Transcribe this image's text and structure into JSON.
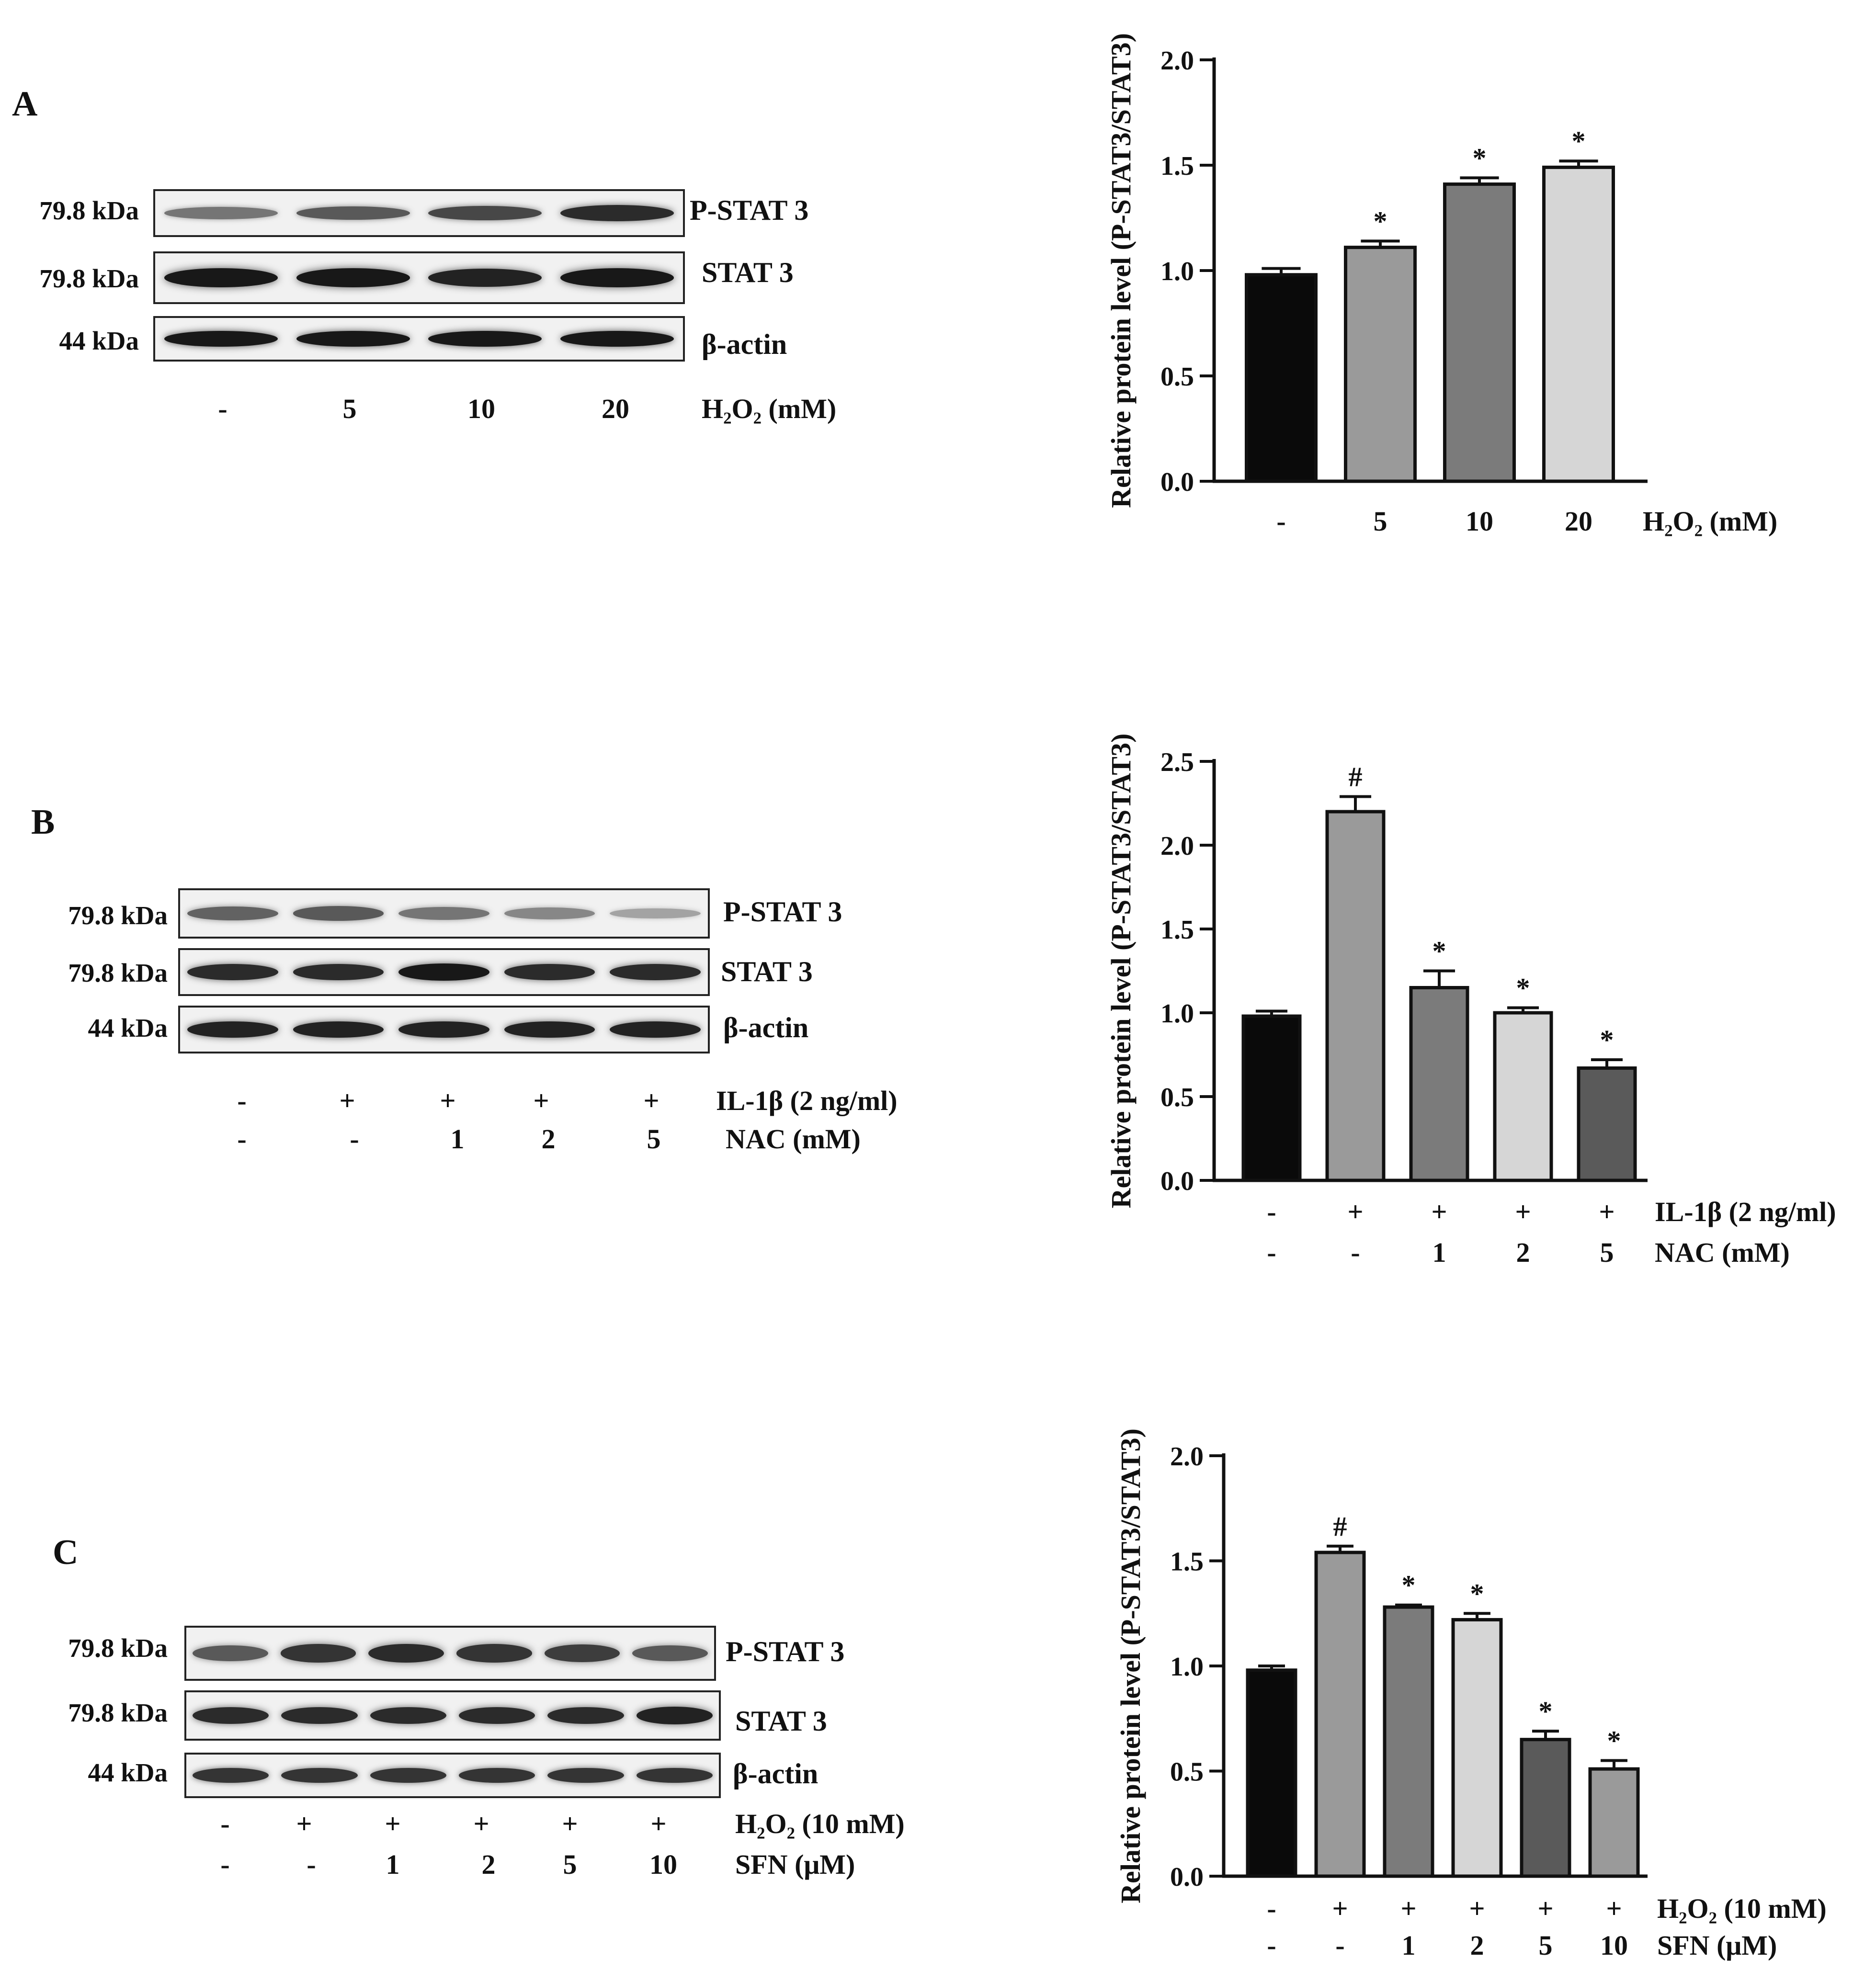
{
  "figure": {
    "panels": [
      {
        "letter": "A",
        "markers": [
          "79.8 kDa",
          "79.8 kDa",
          "44 kDa"
        ],
        "blots": [
          {
            "label": "P-STAT 3",
            "intensity": [
              0.45,
              0.6,
              0.7,
              0.85
            ]
          },
          {
            "label": "STAT 3",
            "intensity": [
              0.95,
              0.95,
              0.9,
              0.95
            ]
          },
          {
            "label": "β-actin",
            "intensity": [
              0.95,
              0.95,
              0.95,
              0.95
            ]
          }
        ],
        "conditions": [
          {
            "label": "H₂O₂ (mM)",
            "values": [
              "-",
              "5",
              "10",
              "20"
            ]
          }
        ]
      },
      {
        "letter": "B",
        "markers": [
          "79.8 kDa",
          "79.8 kDa",
          "44 kDa"
        ],
        "blots": [
          {
            "label": "P-STAT 3",
            "intensity": [
              0.55,
              0.6,
              0.45,
              0.35,
              0.2
            ]
          },
          {
            "label": "STAT 3",
            "intensity": [
              0.85,
              0.85,
              0.95,
              0.85,
              0.85
            ]
          },
          {
            "label": "β-actin",
            "intensity": [
              0.9,
              0.9,
              0.9,
              0.9,
              0.9
            ]
          }
        ],
        "conditions": [
          {
            "label": "IL-1β  (2 ng/ml)",
            "values": [
              "-",
              "+",
              "+",
              "+",
              "+"
            ]
          },
          {
            "label": "NAC  (mM)",
            "values": [
              "-",
              "-",
              "1",
              "2",
              "5"
            ]
          }
        ]
      },
      {
        "letter": "C",
        "markers": [
          "79.8 kDa",
          "79.8 kDa",
          "44 kDa"
        ],
        "blots": [
          {
            "label": "P-STAT 3",
            "intensity": [
              0.6,
              0.8,
              0.85,
              0.8,
              0.75,
              0.6
            ]
          },
          {
            "label": "STAT 3",
            "intensity": [
              0.85,
              0.85,
              0.85,
              0.85,
              0.85,
              0.9
            ]
          },
          {
            "label": "β-actin",
            "intensity": [
              0.8,
              0.8,
              0.8,
              0.8,
              0.8,
              0.8
            ]
          }
        ],
        "conditions": [
          {
            "label": "H₂O₂ (10 mM)",
            "values": [
              "-",
              "+",
              "+",
              "+",
              "+",
              "+"
            ]
          },
          {
            "label": "SFN  (μM)",
            "values": [
              "-",
              "-",
              "1",
              "2",
              "5",
              "10"
            ]
          }
        ]
      }
    ]
  },
  "chart_data": [
    {
      "type": "bar",
      "ylabel": "Relative protein level (P-STAT3/STAT3)",
      "ylim": [
        0,
        2.0
      ],
      "yticks": [
        "0.0",
        "0.5",
        "1.0",
        "1.5",
        "2.0"
      ],
      "categories": [
        "-",
        "5",
        "10",
        "20"
      ],
      "values": [
        0.98,
        1.11,
        1.41,
        1.49
      ],
      "errors": [
        0.03,
        0.03,
        0.03,
        0.03
      ],
      "annotations": [
        "",
        "*",
        "*",
        "*"
      ],
      "bar_colors": [
        "#0a0a0a",
        "#9a9a9a",
        "#7b7b7b",
        "#d6d6d6"
      ],
      "rows": [
        {
          "label": "H₂O₂ (mM)",
          "values": [
            "-",
            "5",
            "10",
            "20"
          ]
        }
      ]
    },
    {
      "type": "bar",
      "ylabel": "Relative protein level (P-STAT3/STAT3)",
      "ylim": [
        0,
        2.5
      ],
      "yticks": [
        "0.0",
        "0.5",
        "1.0",
        "1.5",
        "2.0",
        "2.5"
      ],
      "categories": [
        "-",
        "+",
        "+",
        "+",
        "+"
      ],
      "values": [
        0.98,
        2.2,
        1.15,
        1.0,
        0.67
      ],
      "errors": [
        0.03,
        0.09,
        0.1,
        0.03,
        0.05
      ],
      "annotations": [
        "",
        "#",
        "*",
        "*",
        "*"
      ],
      "bar_colors": [
        "#0a0a0a",
        "#9a9a9a",
        "#7b7b7b",
        "#d6d6d6",
        "#5a5a5a"
      ],
      "rows": [
        {
          "label": "IL-1β  (2 ng/ml)",
          "values": [
            "-",
            "+",
            "+",
            "+",
            "+"
          ]
        },
        {
          "label": "NAC  (mM)",
          "values": [
            "-",
            "-",
            "1",
            "2",
            "5"
          ]
        }
      ]
    },
    {
      "type": "bar",
      "ylabel": "Relative protein level (P-STAT3/STAT3)",
      "ylim": [
        0,
        2.0
      ],
      "yticks": [
        "0.0",
        "0.5",
        "1.0",
        "1.5",
        "2.0"
      ],
      "categories": [
        "-",
        "+",
        "+",
        "+",
        "+",
        "+"
      ],
      "values": [
        0.98,
        1.54,
        1.28,
        1.22,
        0.65,
        0.51
      ],
      "errors": [
        0.02,
        0.03,
        0.01,
        0.03,
        0.04,
        0.04
      ],
      "annotations": [
        "",
        "#",
        "*",
        "*",
        "*",
        "*"
      ],
      "bar_colors": [
        "#0a0a0a",
        "#9a9a9a",
        "#7b7b7b",
        "#d6d6d6",
        "#5a5a5a",
        "#9a9a9a"
      ],
      "rows": [
        {
          "label": "H₂O₂ (10 mM)",
          "values": [
            "-",
            "+",
            "+",
            "+",
            "+",
            "+"
          ]
        },
        {
          "label": "SFN (μM)",
          "values": [
            "-",
            "-",
            "1",
            "2",
            "5",
            "10"
          ]
        }
      ]
    }
  ]
}
